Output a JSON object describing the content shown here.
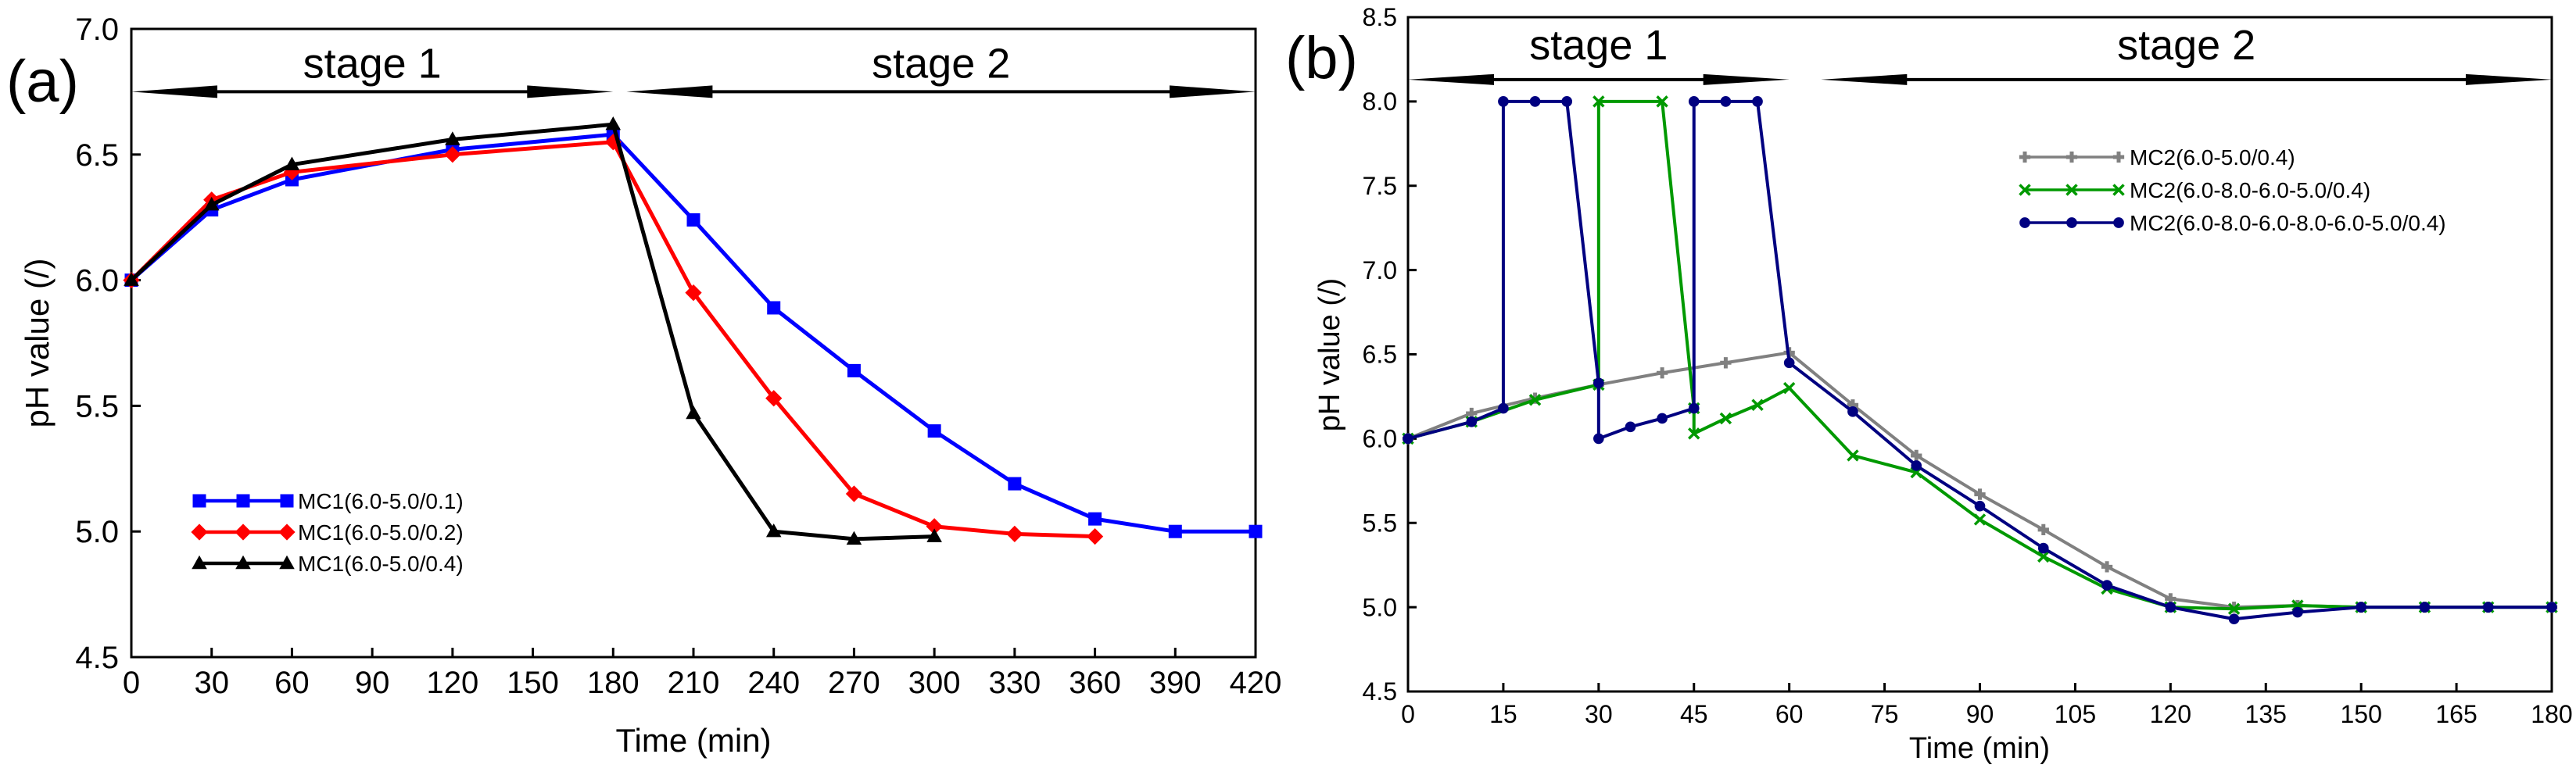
{
  "chart_data": [
    {
      "panel_label": "(a)",
      "type": "line",
      "title": "",
      "xlabel": "Time (min)",
      "ylabel": "pH value (/)",
      "xlim": [
        0,
        420
      ],
      "ylim": [
        4.5,
        7.0
      ],
      "xticks": [
        0,
        30,
        60,
        90,
        120,
        150,
        180,
        210,
        240,
        270,
        300,
        330,
        360,
        390,
        420
      ],
      "xtick_labels": [
        "0",
        "30",
        "60",
        "90",
        "120",
        "150",
        "180",
        "210",
        "240",
        "270",
        "300",
        "330",
        "360",
        "390",
        "420"
      ],
      "yticks": [
        4.5,
        5.0,
        5.5,
        6.0,
        6.5,
        7.0
      ],
      "ytick_labels": [
        "4.5",
        "5.0",
        "5.5",
        "6.0",
        "6.5",
        "7.0"
      ],
      "grid": false,
      "legend_position": "bottom-left",
      "stages": [
        {
          "label": "stage 1",
          "from": 0,
          "to": 180,
          "y": 6.75
        },
        {
          "label": "stage 2",
          "from": 185,
          "to": 420,
          "y": 6.75
        }
      ],
      "series": [
        {
          "name": "MC1(6.0-5.0/0.1)",
          "color": "#0000ff",
          "marker": "square",
          "x": [
            0,
            30,
            60,
            120,
            180,
            210,
            240,
            270,
            300,
            330,
            360,
            390,
            420
          ],
          "y": [
            6.0,
            6.28,
            6.4,
            6.52,
            6.58,
            6.24,
            5.89,
            5.64,
            5.4,
            5.19,
            5.05,
            5.0,
            5.0
          ]
        },
        {
          "name": "MC1(6.0-5.0/0.2)",
          "color": "#ff0000",
          "marker": "diamond",
          "x": [
            0,
            30,
            60,
            120,
            180,
            210,
            240,
            270,
            300,
            330,
            360
          ],
          "y": [
            6.0,
            6.32,
            6.43,
            6.5,
            6.55,
            5.95,
            5.53,
            5.15,
            5.02,
            4.99,
            4.98
          ]
        },
        {
          "name": "MC1(6.0-5.0/0.4)",
          "color": "#000000",
          "marker": "triangle",
          "x": [
            0,
            30,
            60,
            120,
            180,
            210,
            240,
            270,
            300
          ],
          "y": [
            6.0,
            6.3,
            6.46,
            6.56,
            6.62,
            5.47,
            5.0,
            4.97,
            4.98
          ]
        }
      ]
    },
    {
      "panel_label": "(b)",
      "type": "line",
      "title": "",
      "xlabel": "Time (min)",
      "ylabel": "pH value (/)",
      "xlim": [
        0,
        180
      ],
      "ylim": [
        4.5,
        8.5
      ],
      "xticks": [
        0,
        15,
        30,
        45,
        60,
        75,
        90,
        105,
        120,
        135,
        150,
        165,
        180
      ],
      "xtick_labels": [
        "0",
        "15",
        "30",
        "45",
        "60",
        "75",
        "90",
        "105",
        "120",
        "135",
        "150",
        "165",
        "180"
      ],
      "yticks": [
        4.5,
        5.0,
        5.5,
        6.0,
        6.5,
        7.0,
        7.5,
        8.0,
        8.5
      ],
      "ytick_labels": [
        "4.5",
        "5.0",
        "5.5",
        "6.0",
        "6.5",
        "7.0",
        "7.5",
        "8.0",
        "8.5"
      ],
      "grid": false,
      "legend_position": "top-right",
      "stages": [
        {
          "label": "stage 1",
          "from": 0,
          "to": 60,
          "y": 8.13
        },
        {
          "label": "stage 2",
          "from": 65,
          "to": 180,
          "y": 8.13
        }
      ],
      "series": [
        {
          "name": "MC2(6.0-5.0/0.4)",
          "color": "#808080",
          "marker": "plus",
          "x": [
            0,
            10,
            20,
            30,
            40,
            50,
            60,
            70,
            80,
            90,
            100,
            110,
            120,
            130,
            140,
            150,
            160,
            170,
            180
          ],
          "y": [
            6.0,
            6.15,
            6.24,
            6.32,
            6.39,
            6.45,
            6.51,
            6.2,
            5.9,
            5.67,
            5.46,
            5.24,
            5.05,
            5.0,
            5.01,
            5.0,
            5.0,
            5.0,
            5.0
          ]
        },
        {
          "name": "MC2(6.0-8.0-6.0-5.0/0.4)",
          "color": "#009900",
          "marker": "x",
          "x": [
            0,
            10,
            20,
            30,
            30,
            40,
            45,
            45,
            50,
            55,
            60,
            70,
            80,
            90,
            100,
            110,
            120,
            130,
            140,
            150,
            160,
            170,
            180
          ],
          "y": [
            6.0,
            6.1,
            6.23,
            6.32,
            8.0,
            8.0,
            6.18,
            6.03,
            6.12,
            6.2,
            6.3,
            5.9,
            5.8,
            5.52,
            5.3,
            5.11,
            5.0,
            4.99,
            5.01,
            5.0,
            5.0,
            5.0,
            5.0
          ]
        },
        {
          "name": "MC2(6.0-8.0-6.0-8.0-6.0-5.0/0.4)",
          "color": "#000080",
          "marker": "circle",
          "x": [
            0,
            10,
            15,
            15,
            20,
            25,
            30,
            30,
            35,
            40,
            45,
            45,
            50,
            55,
            60,
            70,
            80,
            90,
            100,
            110,
            120,
            130,
            140,
            150,
            160,
            170,
            180
          ],
          "y": [
            6.0,
            6.1,
            6.18,
            8.0,
            8.0,
            8.0,
            6.33,
            6.0,
            6.07,
            6.12,
            6.18,
            8.0,
            8.0,
            8.0,
            6.45,
            6.16,
            5.84,
            5.6,
            5.35,
            5.13,
            5.0,
            4.93,
            4.97,
            5.0,
            5.0,
            5.0,
            5.0
          ]
        }
      ]
    }
  ]
}
